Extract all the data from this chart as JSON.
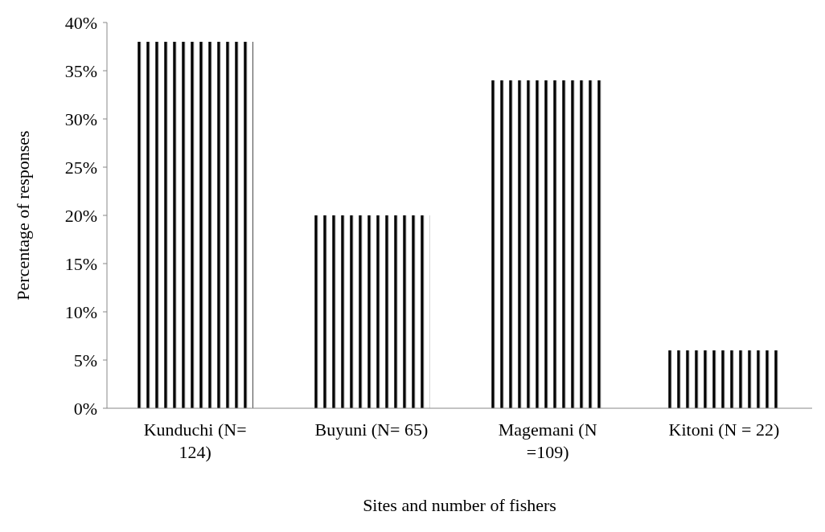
{
  "chart_data": {
    "type": "bar",
    "xlabel": "Sites and number of fishers",
    "ylabel": "Percentage of responses",
    "categories": [
      "Kunduchi (N= 124)",
      "Buyuni (N= 65)",
      "Magemani (N =109)",
      "Kitoni (N = 22)"
    ],
    "values": [
      38,
      20,
      34,
      6
    ],
    "color": "#000000",
    "ylim": [
      0,
      40
    ],
    "yticks": [
      {
        "value": 0,
        "label": "0%"
      },
      {
        "value": 5,
        "label": "5%"
      },
      {
        "value": 10,
        "label": "10%"
      },
      {
        "value": 15,
        "label": "15%"
      },
      {
        "value": 20,
        "label": "20%"
      },
      {
        "value": 25,
        "label": "25%"
      },
      {
        "value": 30,
        "label": "30%"
      },
      {
        "value": 35,
        "label": "35%"
      },
      {
        "value": 40,
        "label": "40%"
      }
    ]
  }
}
